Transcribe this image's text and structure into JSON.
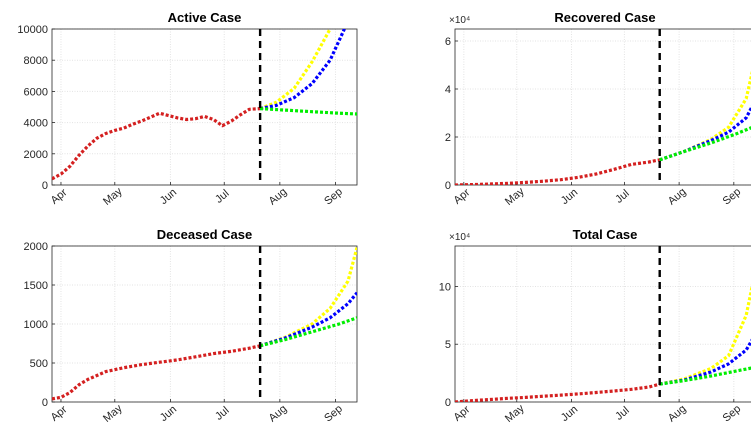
{
  "chart_data": [
    {
      "type": "line",
      "title": "Active Case",
      "x_tick_labels": [
        "Apr",
        "May",
        "Jun",
        "Jul",
        "Aug",
        "Sep"
      ],
      "x_tick_days": [
        5,
        35,
        66,
        96,
        127,
        158
      ],
      "ylim": [
        0,
        10000
      ],
      "y_ticks": [
        0,
        2000,
        4000,
        6000,
        8000,
        10000
      ],
      "y_tick_labels": [
        "0",
        "2000",
        "4000",
        "6000",
        "8000",
        "10000"
      ],
      "y_multiplier": "",
      "cutoff_day": 116,
      "xlim_days": [
        0,
        170
      ],
      "grid": true,
      "series": [
        {
          "color": "#d42020",
          "x_days": [
            0,
            5,
            10,
            15,
            20,
            25,
            30,
            35,
            40,
            45,
            50,
            55,
            60,
            65,
            70,
            75,
            80,
            85,
            90,
            95,
            100,
            105,
            110,
            116
          ],
          "values": [
            400,
            700,
            1200,
            1900,
            2500,
            3000,
            3300,
            3500,
            3650,
            3900,
            4100,
            4350,
            4600,
            4450,
            4300,
            4200,
            4250,
            4400,
            4200,
            3800,
            4100,
            4500,
            4850,
            4900
          ]
        },
        {
          "color": "#ffff00",
          "x_days": [
            116,
            125,
            135,
            145,
            155
          ],
          "values": [
            4900,
            5300,
            6200,
            7900,
            10000
          ]
        },
        {
          "color": "#0000ff",
          "x_days": [
            116,
            125,
            135,
            145,
            155,
            163
          ],
          "values": [
            4900,
            5100,
            5600,
            6500,
            8000,
            10000
          ]
        },
        {
          "color": "#00ee00",
          "x_days": [
            116,
            130,
            145,
            160,
            170
          ],
          "values": [
            4900,
            4800,
            4700,
            4600,
            4550
          ]
        }
      ]
    },
    {
      "type": "line",
      "title": "Recovered Case",
      "x_tick_labels": [
        "Apr",
        "May",
        "Jun",
        "Jul",
        "Aug",
        "Sep"
      ],
      "x_tick_days": [
        5,
        35,
        66,
        96,
        127,
        158
      ],
      "ylim": [
        0,
        65000
      ],
      "y_ticks": [
        0,
        20000,
        40000,
        60000
      ],
      "y_tick_labels": [
        "0",
        "2",
        "4",
        "6"
      ],
      "y_multiplier": "×10⁴",
      "cutoff_day": 116,
      "xlim_days": [
        0,
        170
      ],
      "grid": true,
      "series": [
        {
          "color": "#d42020",
          "x_days": [
            0,
            10,
            20,
            30,
            40,
            50,
            60,
            70,
            80,
            90,
            100,
            110,
            116
          ],
          "values": [
            0,
            150,
            400,
            700,
            1100,
            1600,
            2200,
            3200,
            4600,
            6500,
            8600,
            9600,
            10500
          ]
        },
        {
          "color": "#ffff00",
          "x_days": [
            116,
            130,
            145,
            155,
            165,
            170
          ],
          "values": [
            10500,
            14000,
            19000,
            24000,
            36000,
            52000
          ]
        },
        {
          "color": "#0000ff",
          "x_days": [
            116,
            130,
            145,
            155,
            165,
            170
          ],
          "values": [
            10500,
            14000,
            18500,
            22000,
            28000,
            35000
          ]
        },
        {
          "color": "#00ee00",
          "x_days": [
            116,
            130,
            145,
            160,
            170
          ],
          "values": [
            10500,
            14000,
            17500,
            21500,
            24500
          ]
        }
      ]
    },
    {
      "type": "line",
      "title": "Deceased Case",
      "x_tick_labels": [
        "Apr",
        "May",
        "Jun",
        "Jul",
        "Aug",
        "Sep"
      ],
      "x_tick_days": [
        5,
        35,
        66,
        96,
        127,
        158
      ],
      "ylim": [
        0,
        2000
      ],
      "y_ticks": [
        0,
        500,
        1000,
        1500,
        2000
      ],
      "y_tick_labels": [
        "0",
        "500",
        "1000",
        "1500",
        "2000"
      ],
      "y_multiplier": "",
      "cutoff_day": 116,
      "xlim_days": [
        0,
        170
      ],
      "grid": true,
      "series": [
        {
          "color": "#d42020",
          "x_days": [
            0,
            5,
            10,
            15,
            20,
            25,
            30,
            40,
            50,
            60,
            70,
            80,
            90,
            100,
            110,
            116
          ],
          "values": [
            40,
            60,
            120,
            220,
            290,
            340,
            390,
            440,
            480,
            510,
            540,
            580,
            620,
            650,
            690,
            720
          ]
        },
        {
          "color": "#ffff00",
          "x_days": [
            116,
            130,
            145,
            155,
            165,
            170
          ],
          "values": [
            720,
            830,
            1000,
            1200,
            1550,
            1980
          ]
        },
        {
          "color": "#0000ff",
          "x_days": [
            116,
            130,
            145,
            155,
            165,
            170
          ],
          "values": [
            720,
            820,
            960,
            1080,
            1260,
            1400
          ]
        },
        {
          "color": "#00ee00",
          "x_days": [
            116,
            130,
            145,
            160,
            170
          ],
          "values": [
            720,
            800,
            900,
            1000,
            1080
          ]
        }
      ]
    },
    {
      "type": "line",
      "title": "Total Case",
      "x_tick_labels": [
        "Apr",
        "May",
        "Jun",
        "Jul",
        "Aug",
        "Sep"
      ],
      "x_tick_days": [
        5,
        35,
        66,
        96,
        127,
        158
      ],
      "ylim": [
        0,
        135000
      ],
      "y_ticks": [
        0,
        50000,
        100000
      ],
      "y_tick_labels": [
        "0",
        "5",
        "10"
      ],
      "y_multiplier": "×10⁴",
      "cutoff_day": 116,
      "xlim_days": [
        0,
        170
      ],
      "grid": true,
      "series": [
        {
          "color": "#d42020",
          "x_days": [
            0,
            10,
            20,
            30,
            40,
            50,
            60,
            70,
            80,
            90,
            100,
            110,
            116
          ],
          "values": [
            0,
            1200,
            2200,
            3200,
            4000,
            5000,
            6000,
            7000,
            8200,
            9500,
            11000,
            13000,
            15500
          ]
        },
        {
          "color": "#ffff00",
          "x_days": [
            116,
            130,
            145,
            155,
            165,
            170
          ],
          "values": [
            15500,
            20000,
            29000,
            40000,
            75000,
            112000
          ]
        },
        {
          "color": "#0000ff",
          "x_days": [
            116,
            130,
            145,
            155,
            165,
            170
          ],
          "values": [
            15500,
            19000,
            26000,
            33000,
            45000,
            58000
          ]
        },
        {
          "color": "#00ee00",
          "x_days": [
            116,
            130,
            145,
            160,
            170
          ],
          "values": [
            15500,
            18500,
            22500,
            27000,
            30000
          ]
        }
      ]
    }
  ]
}
